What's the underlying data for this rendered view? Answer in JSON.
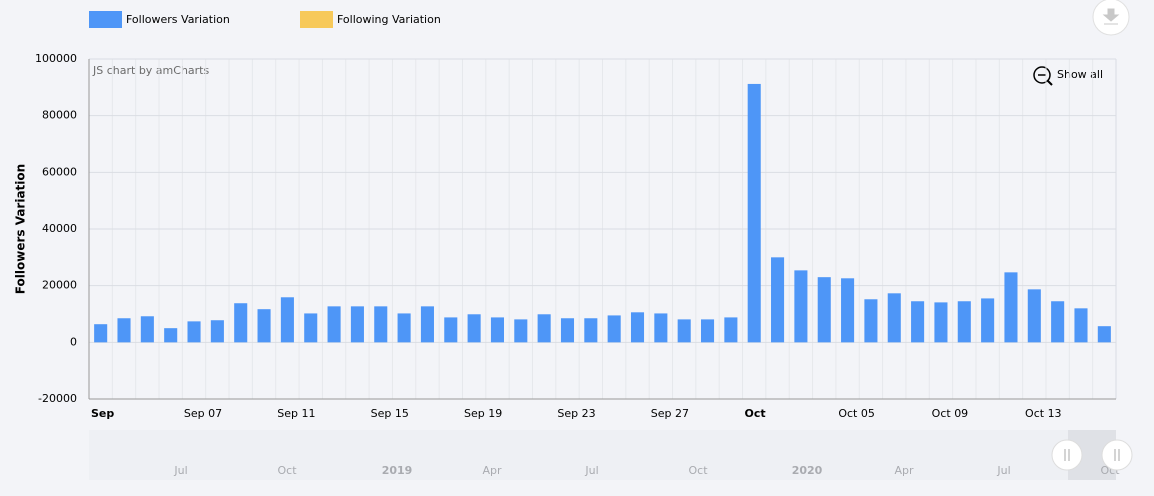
{
  "chart_data": {
    "type": "bar",
    "y_axis_title": "Followers Variation",
    "credit": "JS chart by amCharts",
    "zoom_button": "Show all",
    "categories": [
      "Sep",
      null,
      null,
      null,
      "Sep 07",
      null,
      null,
      null,
      "Sep 11",
      null,
      null,
      null,
      "Sep 15",
      null,
      null,
      null,
      "Sep 19",
      null,
      null,
      null,
      "Sep 23",
      null,
      null,
      null,
      "Sep 27",
      null,
      null,
      null,
      "Oct",
      null,
      null,
      null,
      "Oct 05",
      null,
      null,
      null,
      "Oct 09",
      null,
      null,
      null,
      "Oct 13",
      null,
      null,
      null
    ],
    "series": [
      {
        "name": "Followers Variation",
        "color": "#4e96f7",
        "values": [
          6400,
          8500,
          9200,
          5000,
          7400,
          7800,
          13800,
          11700,
          15900,
          10200,
          12700,
          12700,
          12700,
          10200,
          12700,
          8800,
          9900,
          8800,
          8100,
          9900,
          8500,
          8500,
          9500,
          10600,
          10200,
          8100,
          8100,
          8800,
          91200,
          30000,
          25400,
          23000,
          22600,
          15200,
          17300,
          14500,
          14100,
          14500,
          15500,
          24700,
          18700,
          14500,
          12000,
          5700
        ]
      },
      {
        "name": "Following Variation",
        "color": "#f7c95a"
      }
    ],
    "ylim": [
      -20000,
      100000
    ],
    "yticks": [
      -20000,
      0,
      20000,
      40000,
      60000,
      80000,
      100000
    ],
    "grid": true,
    "scrollbar_labels": [
      "Jul",
      "Oct",
      "2019",
      "Apr",
      "Jul",
      "Oct",
      "2020",
      "Apr",
      "Jul",
      "Oct"
    ]
  }
}
